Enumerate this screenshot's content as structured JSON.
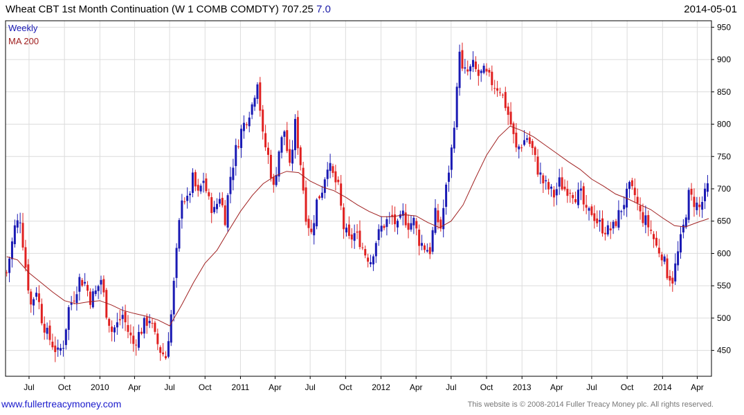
{
  "header": {
    "title": "Wheat CBT 1st Month Continuation (W 1 COMB COMDTY) 707.25",
    "change": "7.0",
    "date": "2014-05-01"
  },
  "legend": {
    "weekly": "Weekly",
    "ma": "MA 200"
  },
  "footer": {
    "link": "www.fullertreacymoney.com",
    "copyright": "This website is © 2008-2014 Fuller Treacy Money plc. All rights reserved."
  },
  "colors": {
    "up": "#1a1ab4",
    "down": "#e02020",
    "ma": "#a02020",
    "grid": "#dcdcdc",
    "axis": "#000000"
  },
  "chart_data": {
    "type": "candlestick",
    "interval": "weekly",
    "y_axis": {
      "side": "right",
      "range": [
        410,
        960
      ],
      "ticks": [
        450,
        500,
        550,
        600,
        650,
        700,
        750,
        800,
        850,
        900,
        950
      ]
    },
    "x_axis": {
      "range": [
        "2009-05-01",
        "2014-05-08"
      ],
      "ticks": [
        {
          "label": "Jul",
          "date": "2009-07-01"
        },
        {
          "label": "Oct",
          "date": "2009-10-01"
        },
        {
          "label": "2010",
          "date": "2010-01-01"
        },
        {
          "label": "Apr",
          "date": "2010-04-01"
        },
        {
          "label": "Jul",
          "date": "2010-07-01"
        },
        {
          "label": "Oct",
          "date": "2010-10-01"
        },
        {
          "label": "2011",
          "date": "2011-01-01"
        },
        {
          "label": "Apr",
          "date": "2011-04-01"
        },
        {
          "label": "Jul",
          "date": "2011-07-01"
        },
        {
          "label": "Oct",
          "date": "2011-10-01"
        },
        {
          "label": "2012",
          "date": "2012-01-01"
        },
        {
          "label": "Apr",
          "date": "2012-04-01"
        },
        {
          "label": "Jul",
          "date": "2012-07-01"
        },
        {
          "label": "Oct",
          "date": "2012-10-01"
        },
        {
          "label": "2013",
          "date": "2013-01-01"
        },
        {
          "label": "Apr",
          "date": "2013-04-01"
        },
        {
          "label": "Jul",
          "date": "2013-07-01"
        },
        {
          "label": "Oct",
          "date": "2013-10-01"
        },
        {
          "label": "2014",
          "date": "2014-01-01"
        },
        {
          "label": "Apr",
          "date": "2014-04-01"
        }
      ]
    },
    "series": [
      {
        "name": "Weekly",
        "kind": "candlestick",
        "start": "2009-05-04",
        "close_anchors": [
          [
            "2009-05-04",
            570
          ],
          [
            "2009-05-25",
            640
          ],
          [
            "2009-06-08",
            655
          ],
          [
            "2009-06-22",
            580
          ],
          [
            "2009-07-06",
            520
          ],
          [
            "2009-07-20",
            545
          ],
          [
            "2009-08-03",
            500
          ],
          [
            "2009-08-17",
            475
          ],
          [
            "2009-08-31",
            460
          ],
          [
            "2009-09-14",
            445
          ],
          [
            "2009-09-28",
            460
          ],
          [
            "2009-10-12",
            515
          ],
          [
            "2009-10-26",
            535
          ],
          [
            "2009-11-09",
            560
          ],
          [
            "2009-11-23",
            555
          ],
          [
            "2009-12-07",
            530
          ],
          [
            "2009-12-21",
            540
          ],
          [
            "2010-01-04",
            560
          ],
          [
            "2010-01-18",
            510
          ],
          [
            "2010-02-01",
            480
          ],
          [
            "2010-02-15",
            490
          ],
          [
            "2010-03-01",
            505
          ],
          [
            "2010-03-15",
            480
          ],
          [
            "2010-03-29",
            460
          ],
          [
            "2010-04-12",
            475
          ],
          [
            "2010-04-26",
            490
          ],
          [
            "2010-05-10",
            500
          ],
          [
            "2010-05-24",
            470
          ],
          [
            "2010-06-07",
            450
          ],
          [
            "2010-06-21",
            440
          ],
          [
            "2010-07-05",
            505
          ],
          [
            "2010-07-19",
            600
          ],
          [
            "2010-08-02",
            690
          ],
          [
            "2010-08-16",
            680
          ],
          [
            "2010-08-30",
            715
          ],
          [
            "2010-09-13",
            690
          ],
          [
            "2010-09-27",
            715
          ],
          [
            "2010-10-11",
            680
          ],
          [
            "2010-10-25",
            665
          ],
          [
            "2010-11-08",
            690
          ],
          [
            "2010-11-22",
            655
          ],
          [
            "2010-12-06",
            720
          ],
          [
            "2010-12-20",
            760
          ],
          [
            "2011-01-03",
            790
          ],
          [
            "2011-01-17",
            810
          ],
          [
            "2011-01-31",
            830
          ],
          [
            "2011-02-14",
            870
          ],
          [
            "2011-02-28",
            780
          ],
          [
            "2011-03-14",
            750
          ],
          [
            "2011-03-28",
            700
          ],
          [
            "2011-04-11",
            760
          ],
          [
            "2011-04-25",
            790
          ],
          [
            "2011-05-09",
            730
          ],
          [
            "2011-05-23",
            800
          ],
          [
            "2011-06-06",
            740
          ],
          [
            "2011-06-20",
            660
          ],
          [
            "2011-07-04",
            630
          ],
          [
            "2011-07-18",
            680
          ],
          [
            "2011-08-01",
            700
          ],
          [
            "2011-08-15",
            740
          ],
          [
            "2011-08-29",
            720
          ],
          [
            "2011-09-12",
            700
          ],
          [
            "2011-09-26",
            640
          ],
          [
            "2011-10-10",
            620
          ],
          [
            "2011-10-24",
            630
          ],
          [
            "2011-11-07",
            620
          ],
          [
            "2011-11-21",
            600
          ],
          [
            "2011-12-05",
            590
          ],
          [
            "2011-12-19",
            620
          ],
          [
            "2012-01-02",
            640
          ],
          [
            "2012-01-16",
            650
          ],
          [
            "2012-01-30",
            655
          ],
          [
            "2012-02-13",
            640
          ],
          [
            "2012-02-27",
            660
          ],
          [
            "2012-03-12",
            645
          ],
          [
            "2012-03-26",
            650
          ],
          [
            "2012-04-09",
            620
          ],
          [
            "2012-04-23",
            610
          ],
          [
            "2012-05-07",
            605
          ],
          [
            "2012-05-21",
            660
          ],
          [
            "2012-06-04",
            640
          ],
          [
            "2012-06-18",
            700
          ],
          [
            "2012-07-02",
            760
          ],
          [
            "2012-07-16",
            850
          ],
          [
            "2012-07-23",
            920
          ],
          [
            "2012-07-30",
            880
          ],
          [
            "2012-08-13",
            880
          ],
          [
            "2012-08-27",
            890
          ],
          [
            "2012-09-10",
            875
          ],
          [
            "2012-09-24",
            880
          ],
          [
            "2012-10-08",
            870
          ],
          [
            "2012-10-22",
            860
          ],
          [
            "2012-11-05",
            855
          ],
          [
            "2012-11-19",
            830
          ],
          [
            "2012-12-03",
            800
          ],
          [
            "2012-12-17",
            760
          ],
          [
            "2012-12-31",
            770
          ],
          [
            "2013-01-14",
            780
          ],
          [
            "2013-01-28",
            760
          ],
          [
            "2013-02-11",
            730
          ],
          [
            "2013-02-25",
            710
          ],
          [
            "2013-03-11",
            700
          ],
          [
            "2013-03-25",
            690
          ],
          [
            "2013-04-08",
            710
          ],
          [
            "2013-04-22",
            700
          ],
          [
            "2013-05-06",
            700
          ],
          [
            "2013-05-20",
            690
          ],
          [
            "2013-06-03",
            690
          ],
          [
            "2013-06-17",
            660
          ],
          [
            "2013-07-01",
            665
          ],
          [
            "2013-07-15",
            650
          ],
          [
            "2013-07-29",
            640
          ],
          [
            "2013-08-12",
            635
          ],
          [
            "2013-08-26",
            640
          ],
          [
            "2013-09-09",
            660
          ],
          [
            "2013-09-23",
            680
          ],
          [
            "2013-10-07",
            700
          ],
          [
            "2013-10-21",
            690
          ],
          [
            "2013-11-04",
            660
          ],
          [
            "2013-11-18",
            650
          ],
          [
            "2013-12-02",
            635
          ],
          [
            "2013-12-16",
            610
          ],
          [
            "2013-12-30",
            600
          ],
          [
            "2014-01-13",
            570
          ],
          [
            "2014-01-27",
            560
          ],
          [
            "2014-02-10",
            600
          ],
          [
            "2014-02-24",
            640
          ],
          [
            "2014-03-10",
            690
          ],
          [
            "2014-03-24",
            680
          ],
          [
            "2014-04-07",
            670
          ],
          [
            "2014-04-21",
            690
          ],
          [
            "2014-05-01",
            707.25
          ]
        ]
      },
      {
        "name": "MA 200",
        "kind": "line",
        "points": [
          [
            "2009-05-04",
            595
          ],
          [
            "2009-06-01",
            590
          ],
          [
            "2009-07-01",
            570
          ],
          [
            "2009-08-01",
            555
          ],
          [
            "2009-09-01",
            540
          ],
          [
            "2009-10-01",
            527
          ],
          [
            "2009-11-01",
            522
          ],
          [
            "2009-12-01",
            525
          ],
          [
            "2010-01-01",
            527
          ],
          [
            "2010-02-01",
            520
          ],
          [
            "2010-03-01",
            512
          ],
          [
            "2010-04-01",
            507
          ],
          [
            "2010-05-01",
            503
          ],
          [
            "2010-06-01",
            497
          ],
          [
            "2010-07-01",
            488
          ],
          [
            "2010-08-01",
            520
          ],
          [
            "2010-09-01",
            555
          ],
          [
            "2010-10-01",
            585
          ],
          [
            "2010-11-01",
            605
          ],
          [
            "2010-12-01",
            635
          ],
          [
            "2011-01-01",
            665
          ],
          [
            "2011-02-01",
            690
          ],
          [
            "2011-03-01",
            708
          ],
          [
            "2011-04-01",
            720
          ],
          [
            "2011-05-01",
            727
          ],
          [
            "2011-06-01",
            725
          ],
          [
            "2011-07-01",
            712
          ],
          [
            "2011-08-01",
            703
          ],
          [
            "2011-09-01",
            697
          ],
          [
            "2011-10-01",
            687
          ],
          [
            "2011-11-01",
            675
          ],
          [
            "2011-12-01",
            665
          ],
          [
            "2012-01-01",
            657
          ],
          [
            "2012-02-01",
            657
          ],
          [
            "2012-03-01",
            660
          ],
          [
            "2012-04-01",
            658
          ],
          [
            "2012-05-01",
            648
          ],
          [
            "2012-06-01",
            640
          ],
          [
            "2012-07-01",
            650
          ],
          [
            "2012-08-01",
            675
          ],
          [
            "2012-09-01",
            715
          ],
          [
            "2012-10-01",
            752
          ],
          [
            "2012-11-01",
            780
          ],
          [
            "2012-12-01",
            797
          ],
          [
            "2013-01-01",
            790
          ],
          [
            "2013-02-01",
            780
          ],
          [
            "2013-03-01",
            768
          ],
          [
            "2013-04-01",
            755
          ],
          [
            "2013-05-01",
            742
          ],
          [
            "2013-06-01",
            730
          ],
          [
            "2013-07-01",
            715
          ],
          [
            "2013-08-01",
            704
          ],
          [
            "2013-09-01",
            692
          ],
          [
            "2013-10-01",
            685
          ],
          [
            "2013-11-01",
            676
          ],
          [
            "2013-12-01",
            668
          ],
          [
            "2014-01-01",
            655
          ],
          [
            "2014-02-01",
            643
          ],
          [
            "2014-03-01",
            641
          ],
          [
            "2014-04-01",
            648
          ],
          [
            "2014-05-01",
            654
          ]
        ]
      }
    ]
  }
}
